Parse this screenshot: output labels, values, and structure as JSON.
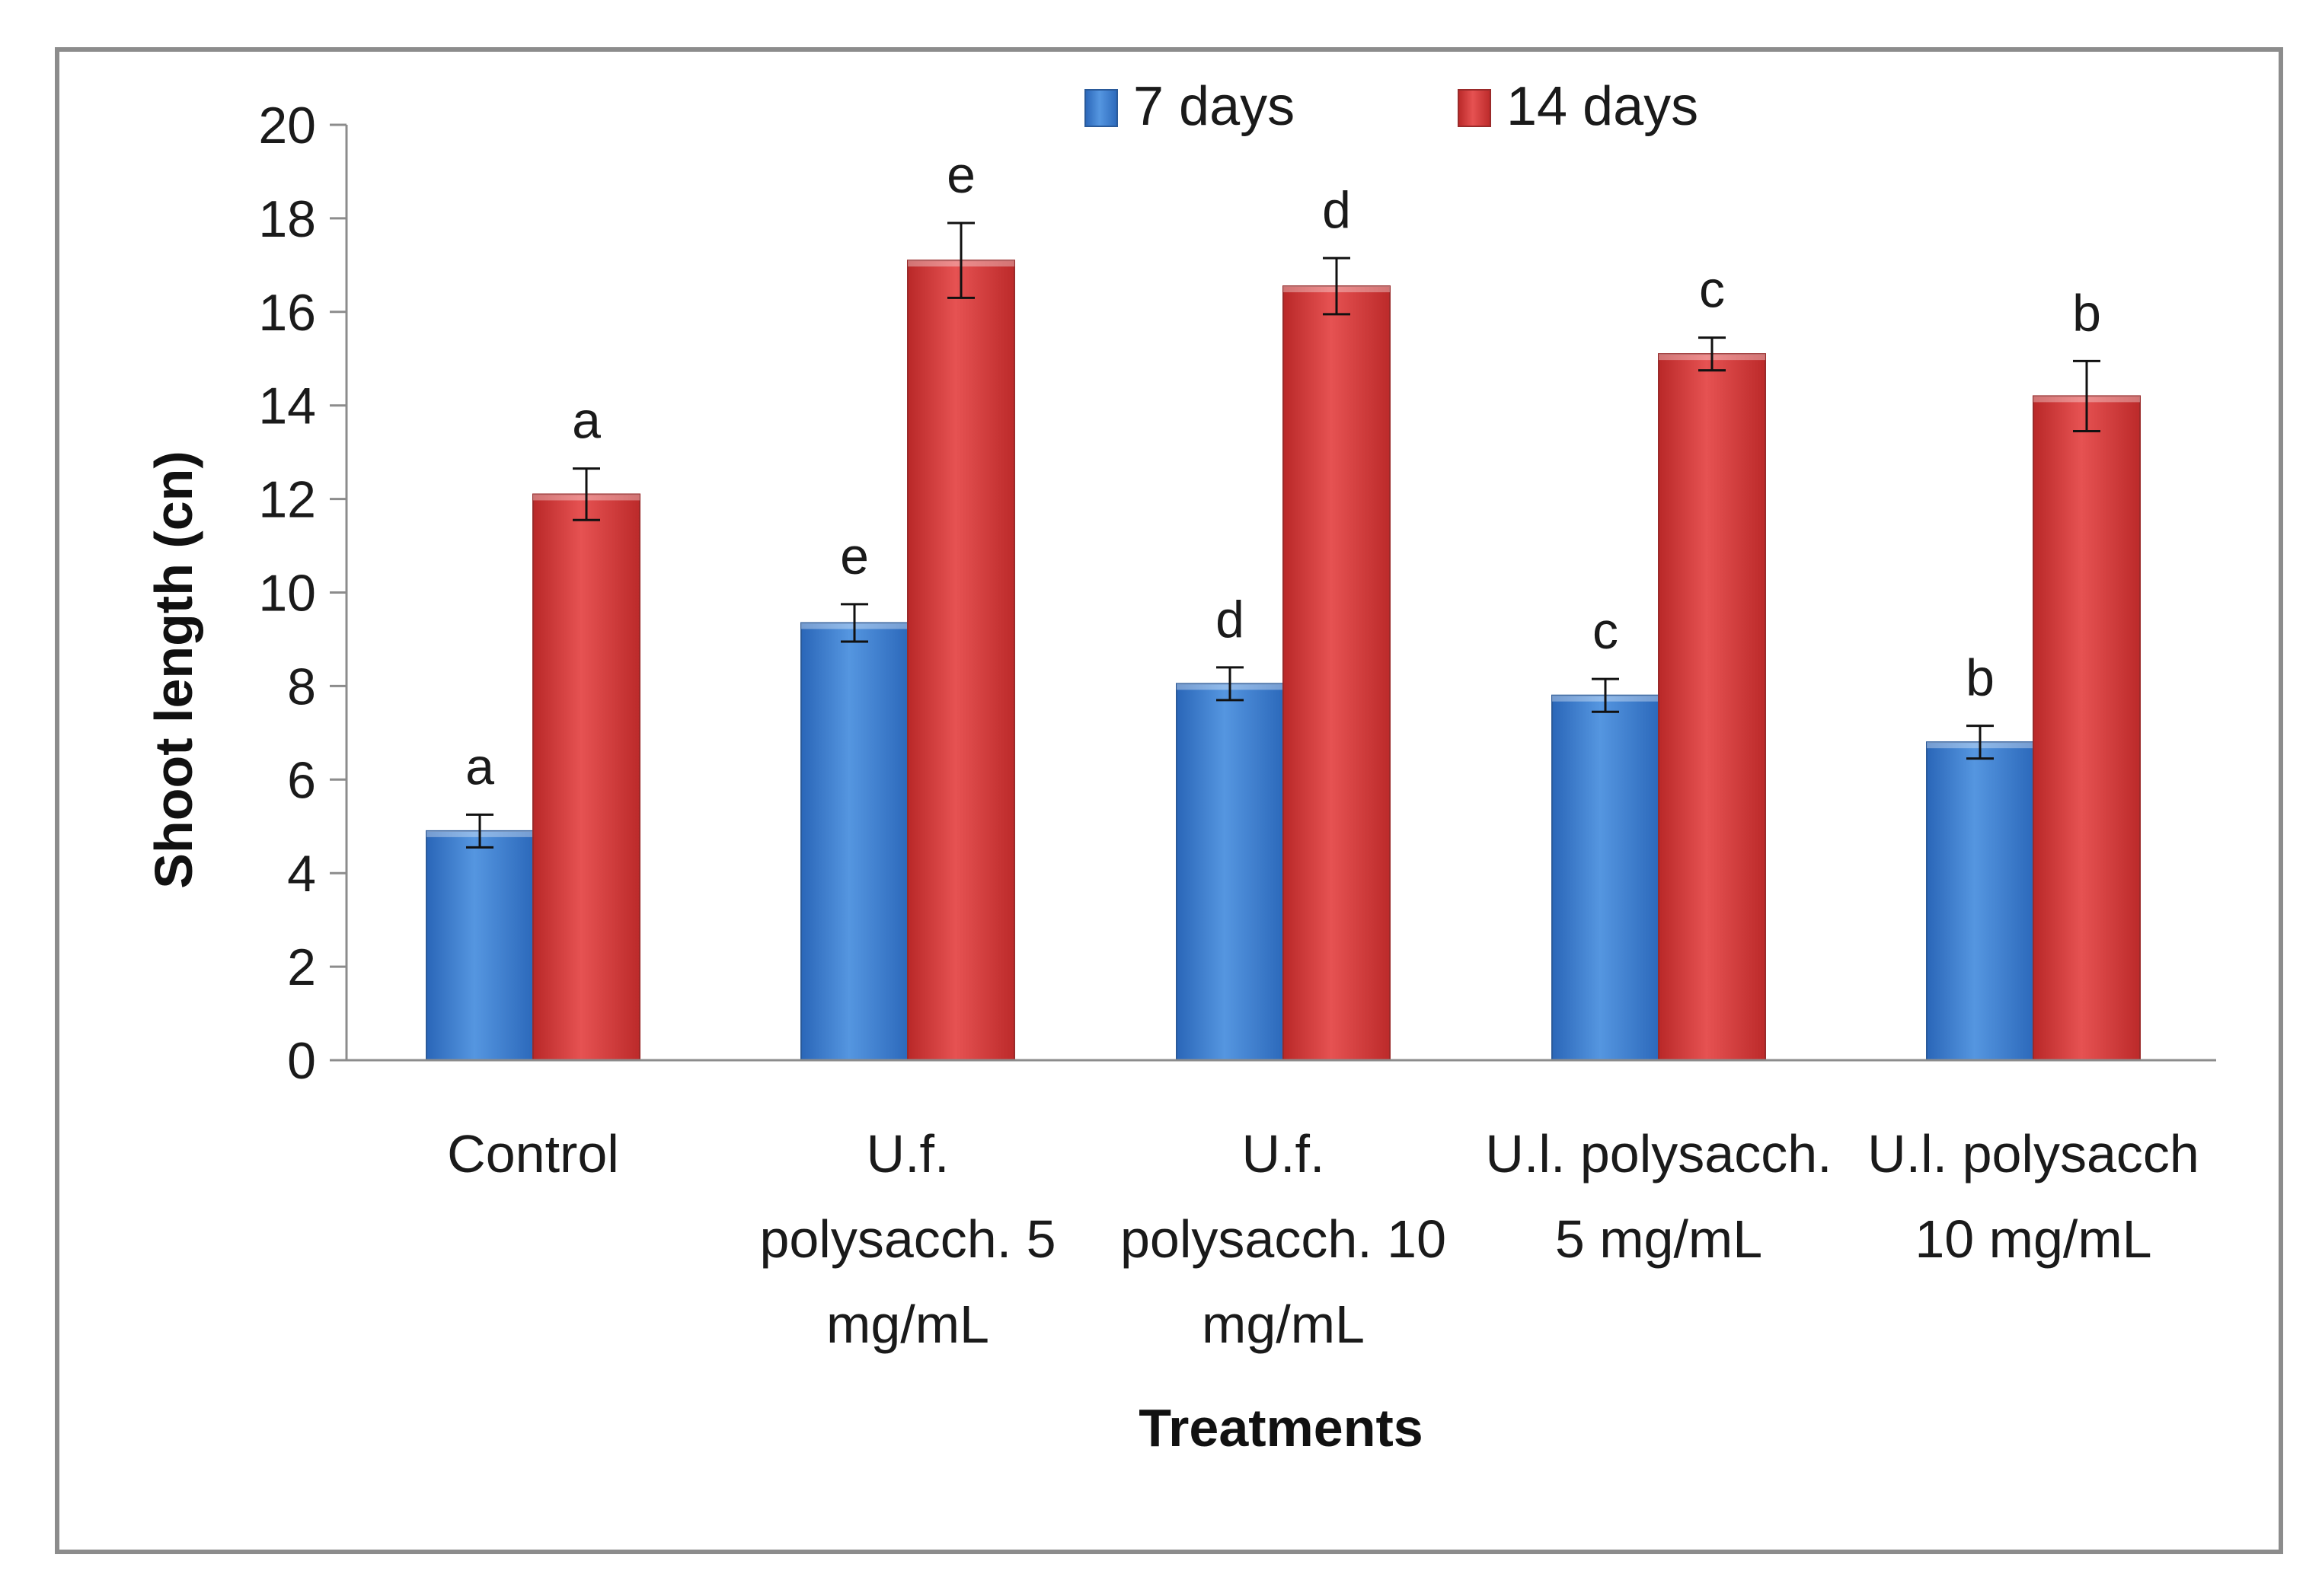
{
  "chart_data": {
    "type": "bar",
    "title": "",
    "xlabel": "Treatments",
    "ylabel": "Shoot length (cn)",
    "ylim": [
      0,
      20
    ],
    "yticks": [
      "0",
      "2",
      "4",
      "6",
      "8",
      "10",
      "12",
      "14",
      "16",
      "18",
      "20"
    ],
    "grid": false,
    "legend_position": "top",
    "categories": [
      [
        "Control"
      ],
      [
        "U.f.",
        "polysacch. 5",
        "mg/mL"
      ],
      [
        "U.f.",
        "polysacch. 10",
        "mg/mL"
      ],
      [
        "U.l. polysacch.",
        "5 mg/mL"
      ],
      [
        "U.l. polysacch",
        "10  mg/mL"
      ]
    ],
    "series": [
      {
        "name": "7 days",
        "color": "#3d7fcf",
        "values": [
          4.9,
          9.35,
          8.05,
          7.8,
          6.8
        ],
        "errors": [
          0.35,
          0.4,
          0.35,
          0.35,
          0.35
        ],
        "letters": [
          "a",
          "e",
          "d",
          "c",
          "b"
        ]
      },
      {
        "name": "14 days",
        "color": "#d93b3b",
        "values": [
          12.1,
          17.1,
          16.55,
          15.1,
          14.2
        ],
        "errors": [
          0.55,
          0.8,
          0.6,
          0.35,
          0.75
        ],
        "letters": [
          "a",
          "e",
          "d",
          "c",
          "b"
        ]
      }
    ]
  }
}
